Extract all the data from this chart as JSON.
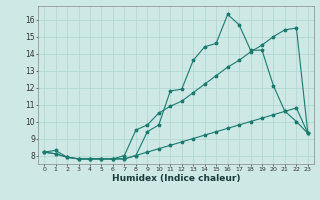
{
  "xlabel": "Humidex (Indice chaleur)",
  "bg_color": "#cde8e5",
  "grid_color": "#afd4d0",
  "line_color": "#1a7a6e",
  "xlim": [
    -0.5,
    23.5
  ],
  "ylim": [
    7.5,
    16.8
  ],
  "xticks": [
    0,
    1,
    2,
    3,
    4,
    5,
    6,
    7,
    8,
    9,
    10,
    11,
    12,
    13,
    14,
    15,
    16,
    17,
    18,
    19,
    20,
    21,
    22,
    23
  ],
  "yticks": [
    8,
    9,
    10,
    11,
    12,
    13,
    14,
    15,
    16
  ],
  "line1_x": [
    0,
    1,
    2,
    3,
    4,
    5,
    6,
    7,
    8,
    9,
    10,
    11,
    12,
    13,
    14,
    15,
    16,
    17,
    18,
    19,
    20,
    21,
    22,
    23
  ],
  "line1_y": [
    8.2,
    8.3,
    7.9,
    7.8,
    7.8,
    7.8,
    7.8,
    7.8,
    8.0,
    9.4,
    9.8,
    11.8,
    11.9,
    13.6,
    14.4,
    14.6,
    16.3,
    15.7,
    14.2,
    14.2,
    12.1,
    10.6,
    10.0,
    9.3
  ],
  "line2_x": [
    0,
    1,
    2,
    3,
    4,
    5,
    6,
    7,
    8,
    9,
    10,
    11,
    12,
    13,
    14,
    15,
    16,
    17,
    18,
    19,
    20,
    21,
    22,
    23
  ],
  "line2_y": [
    8.2,
    8.1,
    7.9,
    7.8,
    7.8,
    7.8,
    7.8,
    8.0,
    9.5,
    9.8,
    10.5,
    10.9,
    11.2,
    11.7,
    12.2,
    12.7,
    13.2,
    13.6,
    14.1,
    14.5,
    15.0,
    15.4,
    15.5,
    9.3
  ],
  "line3_x": [
    0,
    1,
    2,
    3,
    4,
    5,
    6,
    7,
    8,
    9,
    10,
    11,
    12,
    13,
    14,
    15,
    16,
    17,
    18,
    19,
    20,
    21,
    22,
    23
  ],
  "line3_y": [
    8.2,
    8.1,
    7.9,
    7.8,
    7.8,
    7.8,
    7.8,
    7.8,
    8.0,
    8.2,
    8.4,
    8.6,
    8.8,
    9.0,
    9.2,
    9.4,
    9.6,
    9.8,
    10.0,
    10.2,
    10.4,
    10.6,
    10.8,
    9.3
  ]
}
